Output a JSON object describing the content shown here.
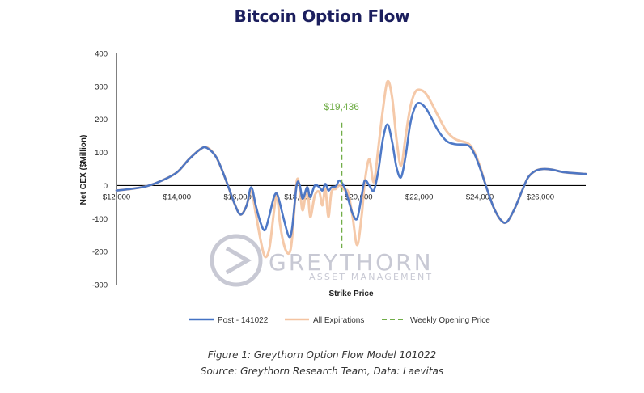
{
  "title": "Bitcoin Option Flow",
  "caption": {
    "line1": "Figure 1: Greythorn Option Flow Model 101022",
    "line2": "Source: Greythorn Research Team, Data: Laevitas"
  },
  "watermark": {
    "name": "GREYTHORN",
    "sub": "ASSET MANAGEMENT"
  },
  "colors": {
    "post": "#4472c4",
    "all": "#f4c3a0",
    "weekly": "#70ad47",
    "title": "#1c1f5e"
  },
  "chart_data": {
    "type": "line",
    "title": "Bitcoin Option Flow",
    "xlabel": "Strike Price",
    "ylabel": "Net GEX ($Million)",
    "xlim": [
      12000,
      27500
    ],
    "ylim": [
      -300,
      400
    ],
    "x_ticks": [
      12000,
      14000,
      16000,
      18000,
      20000,
      22000,
      24000,
      26000
    ],
    "x_tick_labels": [
      "$12,000",
      "$14,000",
      "$16,000",
      "$18,000",
      "$20,000",
      "$22,000",
      "$24,000",
      "$26,000"
    ],
    "y_ticks": [
      400,
      300,
      200,
      100,
      0,
      -100,
      -200,
      -300
    ],
    "y_tick_labels": [
      "400",
      "300",
      "200",
      "100",
      "0",
      "-100",
      "-200",
      "-300"
    ],
    "grid": false,
    "legend_position": "bottom",
    "series": [
      {
        "name": "Post - 141022",
        "points": [
          [
            12000,
            -15
          ],
          [
            12500,
            -10
          ],
          [
            13000,
            -2
          ],
          [
            13500,
            15
          ],
          [
            14000,
            40
          ],
          [
            14400,
            80
          ],
          [
            14800,
            112
          ],
          [
            15000,
            113
          ],
          [
            15300,
            85
          ],
          [
            15600,
            20
          ],
          [
            15900,
            -55
          ],
          [
            16100,
            -88
          ],
          [
            16300,
            -60
          ],
          [
            16450,
            -5
          ],
          [
            16600,
            -60
          ],
          [
            16750,
            -110
          ],
          [
            16900,
            -135
          ],
          [
            17050,
            -90
          ],
          [
            17200,
            -35
          ],
          [
            17300,
            -25
          ],
          [
            17400,
            -55
          ],
          [
            17550,
            -110
          ],
          [
            17700,
            -155
          ],
          [
            17800,
            -130
          ],
          [
            17950,
            0
          ],
          [
            18050,
            2
          ],
          [
            18150,
            -40
          ],
          [
            18300,
            -5
          ],
          [
            18400,
            -35
          ],
          [
            18550,
            0
          ],
          [
            18700,
            -5
          ],
          [
            18800,
            -15
          ],
          [
            18900,
            5
          ],
          [
            19000,
            -15
          ],
          [
            19100,
            -5
          ],
          [
            19250,
            -2
          ],
          [
            19350,
            15
          ],
          [
            19450,
            8
          ],
          [
            19550,
            -10
          ],
          [
            19650,
            -40
          ],
          [
            19800,
            -85
          ],
          [
            19950,
            -100
          ],
          [
            20100,
            -30
          ],
          [
            20200,
            15
          ],
          [
            20350,
            0
          ],
          [
            20500,
            -15
          ],
          [
            20650,
            45
          ],
          [
            20800,
            140
          ],
          [
            20950,
            185
          ],
          [
            21100,
            135
          ],
          [
            21250,
            55
          ],
          [
            21400,
            25
          ],
          [
            21550,
            90
          ],
          [
            21700,
            185
          ],
          [
            21850,
            235
          ],
          [
            22000,
            250
          ],
          [
            22250,
            230
          ],
          [
            22600,
            170
          ],
          [
            22900,
            135
          ],
          [
            23200,
            125
          ],
          [
            23600,
            122
          ],
          [
            23800,
            100
          ],
          [
            24000,
            55
          ],
          [
            24200,
            0
          ],
          [
            24450,
            -65
          ],
          [
            24700,
            -105
          ],
          [
            24900,
            -110
          ],
          [
            25150,
            -70
          ],
          [
            25400,
            -15
          ],
          [
            25600,
            25
          ],
          [
            25850,
            45
          ],
          [
            26100,
            50
          ],
          [
            26400,
            48
          ],
          [
            26800,
            40
          ],
          [
            27500,
            35
          ]
        ]
      },
      {
        "name": "All Expirations",
        "points": [
          [
            12000,
            -15
          ],
          [
            12500,
            -10
          ],
          [
            13000,
            -2
          ],
          [
            13500,
            15
          ],
          [
            14000,
            40
          ],
          [
            14400,
            80
          ],
          [
            14800,
            112
          ],
          [
            15000,
            115
          ],
          [
            15300,
            85
          ],
          [
            15600,
            20
          ],
          [
            15900,
            -55
          ],
          [
            16100,
            -88
          ],
          [
            16300,
            -60
          ],
          [
            16450,
            -15
          ],
          [
            16600,
            -85
          ],
          [
            16750,
            -160
          ],
          [
            16900,
            -215
          ],
          [
            17050,
            -190
          ],
          [
            17200,
            -80
          ],
          [
            17300,
            -25
          ],
          [
            17400,
            -115
          ],
          [
            17550,
            -185
          ],
          [
            17700,
            -205
          ],
          [
            17800,
            -160
          ],
          [
            17950,
            10
          ],
          [
            18050,
            -5
          ],
          [
            18150,
            -75
          ],
          [
            18300,
            -5
          ],
          [
            18400,
            -95
          ],
          [
            18550,
            -30
          ],
          [
            18700,
            -20
          ],
          [
            18800,
            -60
          ],
          [
            18900,
            -10
          ],
          [
            19000,
            -95
          ],
          [
            19100,
            -20
          ],
          [
            19250,
            -10
          ],
          [
            19350,
            0
          ],
          [
            19450,
            -5
          ],
          [
            19550,
            -15
          ],
          [
            19650,
            -20
          ],
          [
            19800,
            -95
          ],
          [
            19950,
            -180
          ],
          [
            20100,
            -90
          ],
          [
            20200,
            10
          ],
          [
            20350,
            80
          ],
          [
            20500,
            10
          ],
          [
            20650,
            115
          ],
          [
            20800,
            230
          ],
          [
            20950,
            315
          ],
          [
            21100,
            270
          ],
          [
            21250,
            140
          ],
          [
            21400,
            60
          ],
          [
            21550,
            150
          ],
          [
            21700,
            235
          ],
          [
            21850,
            280
          ],
          [
            22000,
            290
          ],
          [
            22250,
            275
          ],
          [
            22600,
            215
          ],
          [
            22900,
            165
          ],
          [
            23200,
            140
          ],
          [
            23600,
            128
          ],
          [
            23800,
            105
          ],
          [
            24000,
            60
          ],
          [
            24200,
            0
          ],
          [
            24450,
            -65
          ],
          [
            24700,
            -105
          ],
          [
            24900,
            -110
          ],
          [
            25150,
            -70
          ],
          [
            25400,
            -15
          ],
          [
            25600,
            25
          ],
          [
            25850,
            45
          ],
          [
            26100,
            50
          ],
          [
            26400,
            48
          ],
          [
            26800,
            40
          ],
          [
            27500,
            35
          ]
        ]
      }
    ],
    "reference_line": {
      "name": "Weekly Opening  Price",
      "x": 19436,
      "label": "$19,436",
      "y_range": [
        -190,
        190
      ]
    }
  }
}
